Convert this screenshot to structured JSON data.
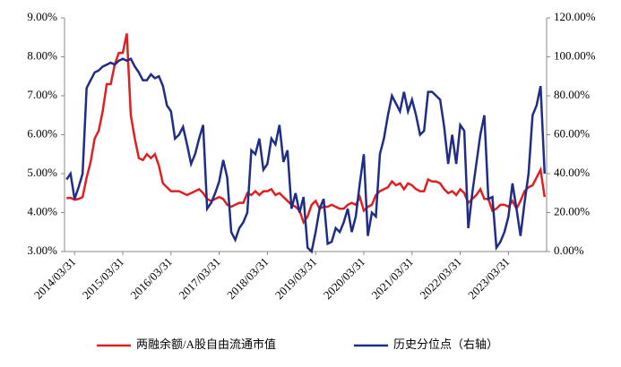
{
  "chart_data": {
    "type": "line",
    "categories": [
      null,
      null,
      "2014/03/31",
      null,
      null,
      null,
      null,
      null,
      null,
      null,
      null,
      null,
      null,
      null,
      "2015/03/31",
      null,
      null,
      null,
      null,
      null,
      null,
      null,
      null,
      null,
      null,
      null,
      "2016/03/31",
      null,
      null,
      null,
      null,
      null,
      null,
      null,
      null,
      null,
      null,
      null,
      "2017/03/31",
      null,
      null,
      null,
      null,
      null,
      null,
      null,
      null,
      null,
      null,
      null,
      "2018/03/31",
      null,
      null,
      null,
      null,
      null,
      null,
      null,
      null,
      null,
      null,
      null,
      "2019/03/31",
      null,
      null,
      null,
      null,
      null,
      null,
      null,
      null,
      null,
      null,
      null,
      "2020/03/31",
      null,
      null,
      null,
      null,
      null,
      null,
      null,
      null,
      null,
      null,
      null,
      "2021/03/31",
      null,
      null,
      null,
      null,
      null,
      null,
      null,
      null,
      null,
      null,
      null,
      "2022/03/31",
      null,
      null,
      null,
      null,
      null,
      null,
      null,
      null,
      null,
      null,
      null,
      "2023/03/31",
      null,
      null,
      null,
      null,
      null,
      null,
      null,
      null,
      null
    ],
    "series": [
      {
        "name": "两融余额/A股自由流通市值",
        "color": "#e02020",
        "values": [
          4.37,
          4.38,
          4.33,
          4.35,
          4.4,
          4.9,
          5.3,
          5.9,
          6.1,
          6.6,
          7.3,
          7.3,
          7.8,
          8.1,
          8.1,
          8.6,
          6.5,
          5.9,
          5.4,
          5.35,
          5.5,
          5.4,
          5.5,
          5.2,
          4.75,
          4.65,
          4.55,
          4.55,
          4.55,
          4.5,
          4.45,
          4.5,
          4.55,
          4.6,
          4.5,
          4.35,
          4.3,
          4.35,
          4.4,
          4.35,
          4.2,
          4.15,
          4.2,
          4.25,
          4.25,
          4.5,
          4.45,
          4.55,
          4.45,
          4.55,
          4.55,
          4.6,
          4.45,
          4.5,
          4.4,
          4.3,
          4.2,
          4.15,
          4.05,
          3.75,
          3.9,
          4.2,
          4.3,
          4.1,
          4.15,
          4.15,
          4.2,
          4.15,
          4.1,
          4.1,
          4.2,
          4.25,
          4.2,
          4.4,
          4.05,
          4.15,
          4.2,
          4.45,
          4.55,
          4.6,
          4.65,
          4.8,
          4.7,
          4.75,
          4.6,
          4.75,
          4.7,
          4.6,
          4.55,
          4.55,
          4.85,
          4.8,
          4.8,
          4.75,
          4.6,
          4.5,
          4.55,
          4.45,
          4.6,
          4.5,
          4.25,
          4.35,
          4.45,
          4.6,
          4.35,
          4.35,
          4.05,
          4.1,
          4.2,
          4.2,
          4.15,
          4.3,
          4.1,
          4.3,
          4.55,
          4.65,
          4.7,
          4.9,
          5.1,
          4.4
        ]
      },
      {
        "name": "历史分位点（右轴）",
        "color": "#1f2d86",
        "axis": "y2",
        "values": [
          37,
          40,
          27,
          33,
          40,
          84,
          88,
          92,
          93,
          95,
          96,
          97,
          96,
          98,
          99,
          98,
          99,
          95,
          92,
          88,
          88,
          91,
          89,
          90,
          85,
          75,
          72,
          58,
          60,
          64,
          55,
          45,
          50,
          58,
          65,
          22,
          25,
          30,
          36,
          47,
          38,
          10,
          6,
          12,
          15,
          20,
          52,
          50,
          58,
          42,
          45,
          58,
          55,
          65,
          46,
          52,
          22,
          30,
          20,
          28,
          2,
          0,
          10,
          22,
          27,
          4,
          5,
          12,
          10,
          15,
          22,
          10,
          18,
          35,
          50,
          8,
          20,
          18,
          50,
          58,
          70,
          80,
          76,
          72,
          82,
          72,
          78,
          70,
          60,
          62,
          82,
          82,
          80,
          78,
          64,
          45,
          60,
          45,
          65,
          62,
          12,
          30,
          45,
          60,
          70,
          27,
          28,
          2,
          5,
          10,
          18,
          35,
          22,
          8,
          25,
          40,
          70,
          75,
          85,
          40
        ]
      }
    ],
    "ylim": [
      3,
      9
    ],
    "yticks": [
      {
        "value": 3,
        "label": "3.00%"
      },
      {
        "value": 4,
        "label": "4.00%"
      },
      {
        "value": 5,
        "label": "5.00%"
      },
      {
        "value": 6,
        "label": "6.00%"
      },
      {
        "value": 7,
        "label": "7.00%"
      },
      {
        "value": 8,
        "label": "8.00%"
      },
      {
        "value": 9,
        "label": "9.00%"
      }
    ],
    "y2lim": [
      0,
      120
    ],
    "y2ticks": [
      {
        "value": 0,
        "label": "0.00%"
      },
      {
        "value": 20,
        "label": "20.00%"
      },
      {
        "value": 40,
        "label": "40.00%"
      },
      {
        "value": 60,
        "label": "60.00%"
      },
      {
        "value": 80,
        "label": "80.00%"
      },
      {
        "value": 100,
        "label": "100.00%"
      },
      {
        "value": 120,
        "label": "120.00%"
      }
    ],
    "grid": false,
    "legend": "bottom"
  }
}
